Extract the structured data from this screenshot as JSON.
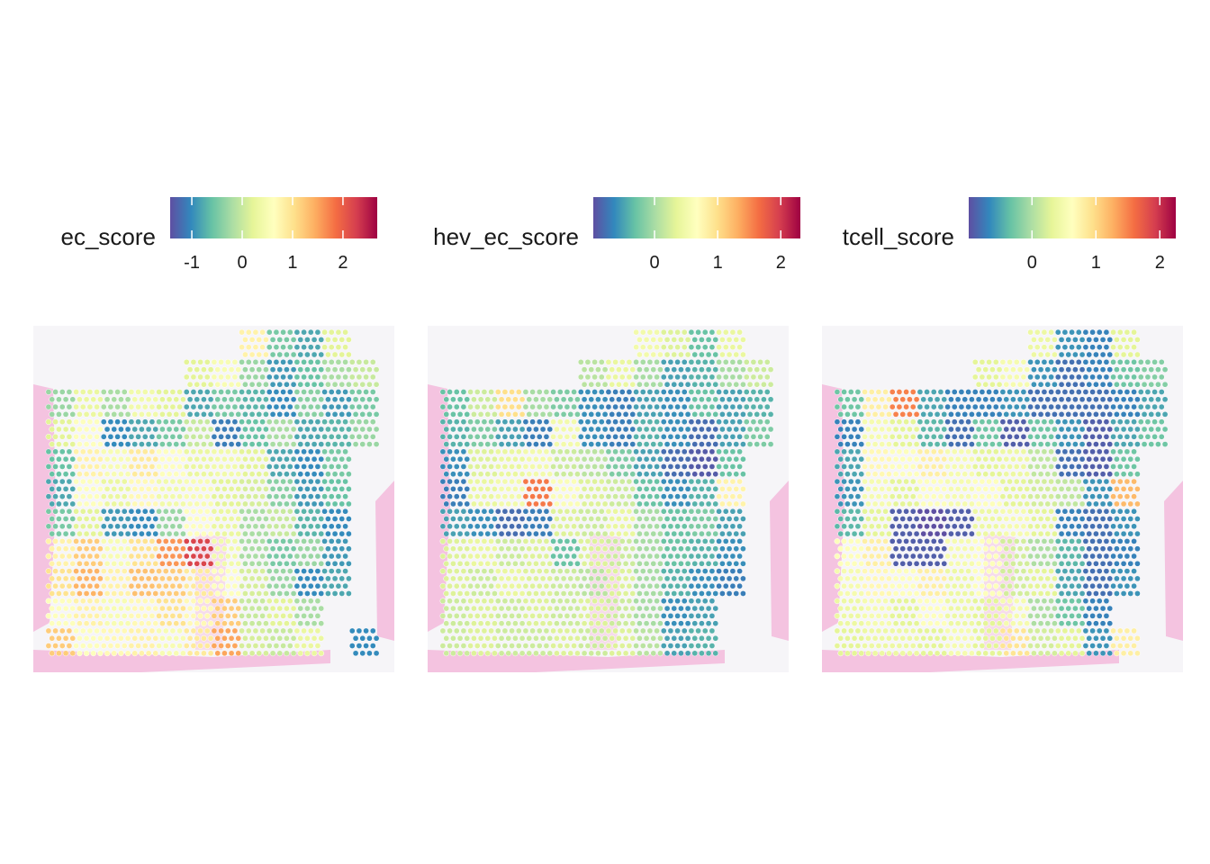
{
  "chart_data": [
    {
      "type": "spatial",
      "legend_title": "ec_score",
      "colormap": [
        "#5e4fa2",
        "#3288bd",
        "#66c2a5",
        "#abdda4",
        "#e6f598",
        "#ffffbf",
        "#fee08b",
        "#fdae61",
        "#f46d43",
        "#d53e4f",
        "#9e0142"
      ],
      "clim": [
        -1.43,
        2.68
      ],
      "cticks": [
        -1,
        0,
        1,
        2
      ],
      "values": [
        [
          null,
          null,
          null,
          null,
          null,
          null,
          null,
          0.8,
          -0.5,
          -0.8,
          0.2,
          null
        ],
        [
          null,
          null,
          null,
          null,
          null,
          0.2,
          0.5,
          -0.3,
          -0.9,
          -0.6,
          -0.2,
          0.0
        ],
        [
          -0.3,
          0.3,
          -0.2,
          0.4,
          0.2,
          -0.8,
          -0.5,
          -0.7,
          -1.0,
          -0.4,
          -0.9,
          -0.5
        ],
        [
          0.2,
          0.6,
          -1.0,
          -0.8,
          -0.5,
          0.0,
          -1.1,
          -0.6,
          -0.2,
          -0.8,
          -0.7,
          -0.3
        ],
        [
          -0.6,
          0.8,
          0.5,
          0.9,
          0.6,
          0.3,
          0.4,
          0.2,
          -0.8,
          -1.0,
          -0.5,
          null
        ],
        [
          -0.8,
          0.6,
          0.3,
          0.7,
          0.4,
          0.5,
          0.2,
          0.1,
          -0.4,
          -0.9,
          -0.6,
          null
        ],
        [
          -0.5,
          0.2,
          -0.9,
          -1.0,
          -0.3,
          0.6,
          0.3,
          -0.2,
          0.0,
          -0.7,
          -1.0,
          null
        ],
        [
          0.8,
          1.2,
          0.5,
          1.0,
          1.6,
          2.2,
          0.4,
          -0.2,
          -0.5,
          -0.3,
          -0.9,
          null
        ],
        [
          1.0,
          1.4,
          0.8,
          1.3,
          1.2,
          0.9,
          0.6,
          0.1,
          -0.3,
          -1.0,
          -0.8,
          null
        ],
        [
          0.6,
          0.8,
          0.5,
          0.7,
          1.0,
          0.7,
          1.2,
          0.0,
          0.2,
          -0.2,
          null,
          null
        ],
        [
          1.2,
          0.6,
          0.7,
          0.8,
          0.5,
          0.9,
          1.5,
          0.1,
          0.0,
          0.3,
          null,
          -1.0
        ]
      ]
    },
    {
      "type": "spatial",
      "legend_title": "hev_ec_score",
      "colormap": [
        "#5e4fa2",
        "#3288bd",
        "#66c2a5",
        "#abdda4",
        "#e6f598",
        "#ffffbf",
        "#fee08b",
        "#fdae61",
        "#f46d43",
        "#d53e4f",
        "#9e0142"
      ],
      "clim": [
        -0.97,
        2.31
      ],
      "cticks": [
        0,
        1,
        2
      ],
      "values": [
        [
          null,
          null,
          null,
          null,
          null,
          null,
          null,
          0.5,
          0.3,
          -0.3,
          0.4,
          null
        ],
        [
          null,
          null,
          null,
          null,
          null,
          0.1,
          0.4,
          0.0,
          -0.5,
          -0.4,
          0.0,
          0.2
        ],
        [
          -0.3,
          0.2,
          1.0,
          0.0,
          -0.2,
          -0.6,
          -0.7,
          -0.5,
          -0.6,
          -0.3,
          -0.5,
          -0.4
        ],
        [
          -0.4,
          -0.2,
          -0.5,
          -0.7,
          0.5,
          -0.6,
          -0.7,
          -0.4,
          -0.6,
          -0.8,
          -0.5,
          -0.2
        ],
        [
          -0.6,
          0.3,
          0.4,
          0.5,
          0.2,
          0.1,
          -0.2,
          -0.5,
          -0.8,
          -0.9,
          -0.3,
          null
        ],
        [
          -0.7,
          0.4,
          0.5,
          1.6,
          0.6,
          0.3,
          0.2,
          -0.3,
          -0.6,
          -0.4,
          0.8,
          null
        ],
        [
          -0.5,
          -0.6,
          -0.8,
          -0.7,
          0.3,
          0.2,
          0.4,
          0.0,
          -0.3,
          -0.2,
          -0.5,
          null
        ],
        [
          0.3,
          0.4,
          0.2,
          0.3,
          -0.3,
          0.3,
          0.2,
          0.0,
          -0.3,
          -0.4,
          -0.6,
          null
        ],
        [
          0.3,
          0.2,
          0.4,
          0.3,
          0.2,
          0.1,
          0.3,
          0.0,
          -0.4,
          -0.6,
          -0.7,
          null
        ],
        [
          0.2,
          0.3,
          0.2,
          0.3,
          0.2,
          0.3,
          0.2,
          0.0,
          -0.6,
          -0.5,
          null,
          null
        ],
        [
          0.2,
          0.3,
          0.2,
          0.2,
          0.3,
          0.2,
          0.3,
          0.1,
          -0.5,
          -0.4,
          null,
          null
        ]
      ]
    },
    {
      "type": "spatial",
      "legend_title": "tcell_score",
      "colormap": [
        "#5e4fa2",
        "#3288bd",
        "#66c2a5",
        "#abdda4",
        "#e6f598",
        "#ffffbf",
        "#fee08b",
        "#fdae61",
        "#f46d43",
        "#d53e4f",
        "#9e0142"
      ],
      "clim": [
        -0.99,
        2.25
      ],
      "cticks": [
        0,
        1,
        2
      ],
      "values": [
        [
          null,
          null,
          null,
          null,
          null,
          null,
          null,
          0.4,
          -0.6,
          -0.7,
          0.3,
          null
        ],
        [
          null,
          null,
          null,
          null,
          null,
          0.3,
          0.5,
          -0.6,
          -0.8,
          -0.7,
          -0.3,
          -0.2
        ],
        [
          -0.3,
          0.8,
          1.5,
          -0.5,
          -0.7,
          -0.7,
          -0.6,
          -0.8,
          -0.8,
          -0.8,
          -0.7,
          -0.5
        ],
        [
          -0.7,
          0.5,
          0.3,
          -0.4,
          -0.8,
          -0.3,
          -0.9,
          -0.3,
          -0.6,
          -0.9,
          -0.5,
          -0.3
        ],
        [
          -0.5,
          0.7,
          0.6,
          0.8,
          0.5,
          0.3,
          0.4,
          0.1,
          -0.8,
          -0.9,
          -0.3,
          null
        ],
        [
          -0.6,
          0.5,
          0.3,
          0.6,
          0.5,
          0.6,
          0.3,
          0.2,
          0.1,
          -0.6,
          1.2,
          null
        ],
        [
          -0.4,
          0.3,
          -0.9,
          -1.0,
          -0.9,
          0.4,
          0.5,
          0.3,
          -0.7,
          -0.8,
          -0.6,
          null
        ],
        [
          0.6,
          0.8,
          -0.9,
          -0.9,
          0.5,
          0.6,
          0.2,
          0.0,
          -0.4,
          -0.8,
          -0.7,
          null
        ],
        [
          0.5,
          0.7,
          0.6,
          0.8,
          0.4,
          0.6,
          0.2,
          0.3,
          -0.5,
          -0.8,
          -0.6,
          null
        ],
        [
          0.4,
          0.5,
          0.3,
          0.6,
          0.4,
          0.3,
          0.5,
          0.0,
          -0.3,
          -0.7,
          null,
          null
        ],
        [
          0.3,
          0.4,
          0.4,
          0.3,
          0.5,
          0.3,
          0.9,
          0.2,
          0.3,
          -0.6,
          0.8,
          null
        ]
      ]
    }
  ]
}
